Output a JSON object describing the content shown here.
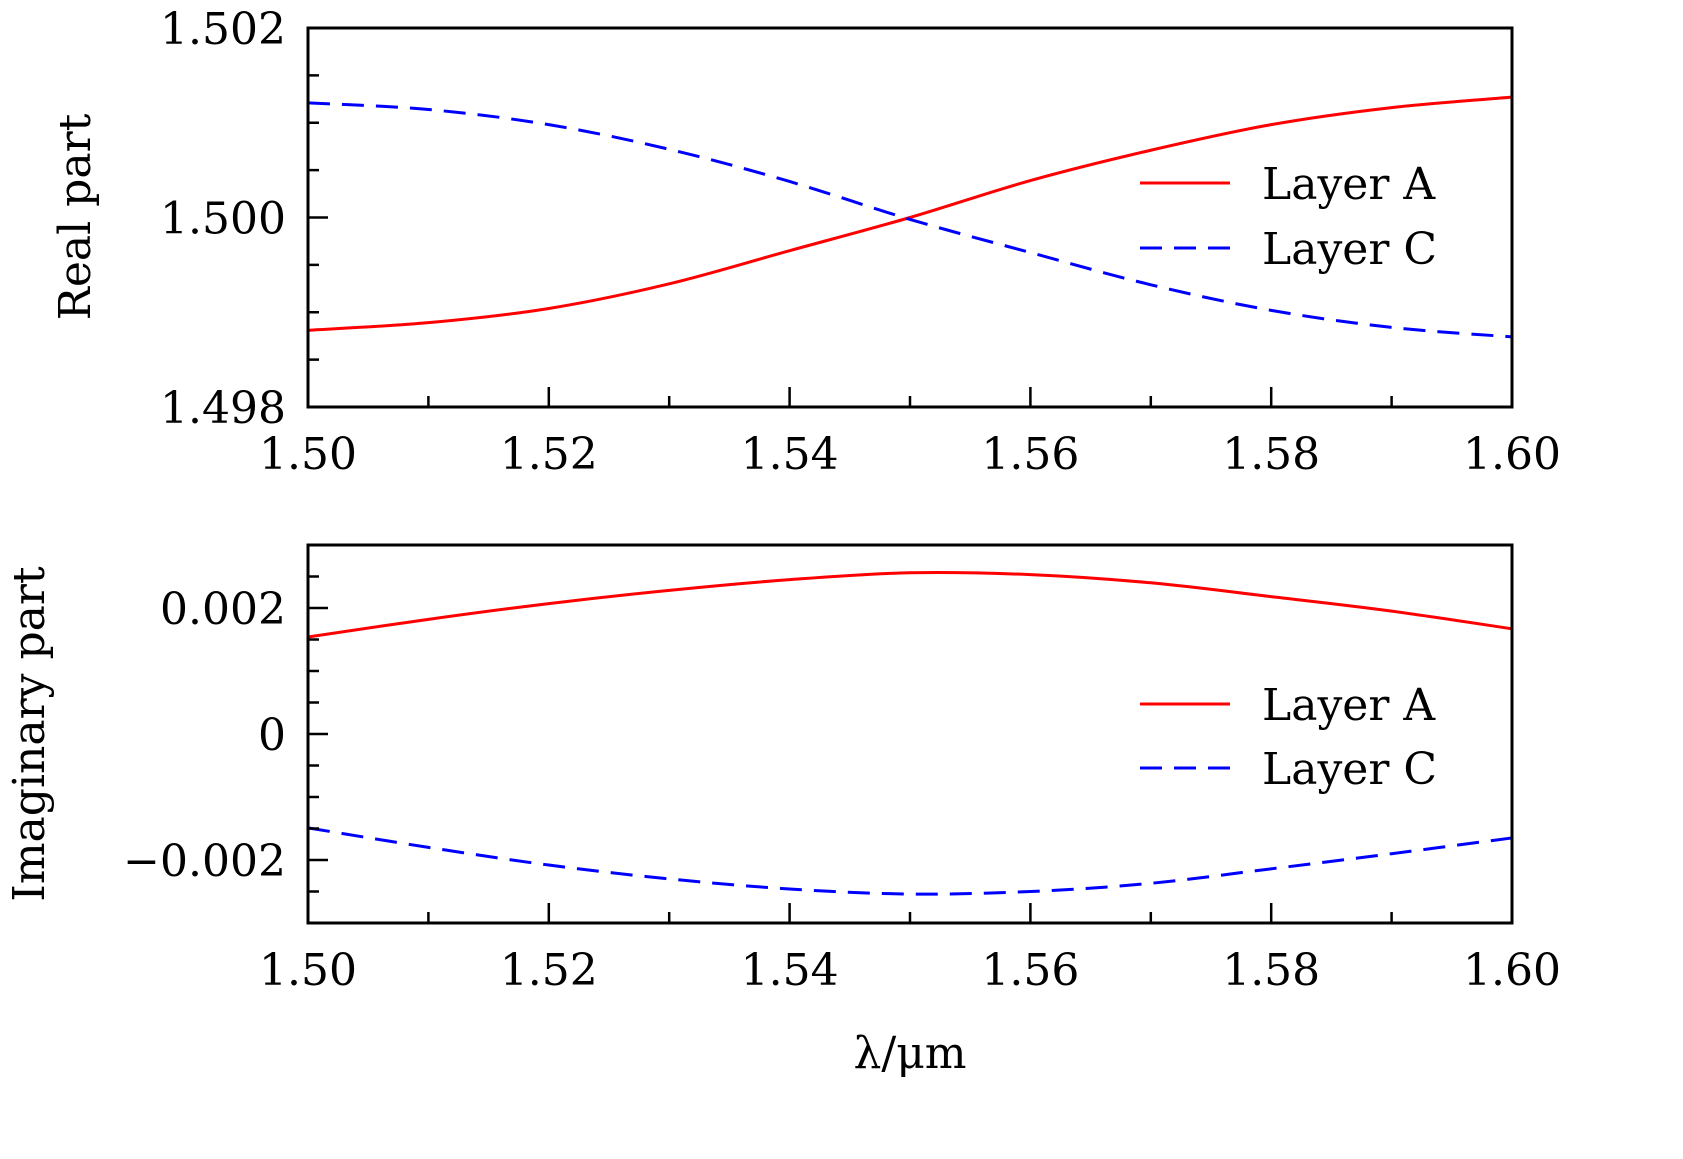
{
  "chart_data": [
    {
      "type": "line",
      "ylabel": "Real part",
      "xlabel": "",
      "xlim": [
        1.5,
        1.6
      ],
      "ylim": [
        1.498,
        1.502
      ],
      "xticks": [
        "1.50",
        "1.52",
        "1.54",
        "1.56",
        "1.58",
        "1.60"
      ],
      "yticks": [
        "1.498",
        "1.500",
        "1.502"
      ],
      "grid": false,
      "legend": "right",
      "x": [
        1.5,
        1.51,
        1.52,
        1.53,
        1.54,
        1.55,
        1.56,
        1.57,
        1.58,
        1.59,
        1.6
      ],
      "series": [
        {
          "name": "Layer A",
          "color": "#ff0000",
          "dash": "solid",
          "values": [
            1.49881,
            1.49889,
            1.49904,
            1.4993,
            1.49965,
            1.5,
            1.50039,
            1.50071,
            1.50098,
            1.50116,
            1.50127
          ]
        },
        {
          "name": "Layer C",
          "color": "#0000ff",
          "dash": "dashed",
          "values": [
            1.50121,
            1.50114,
            1.50098,
            1.50072,
            1.50038,
            1.49998,
            1.49963,
            1.49929,
            1.49902,
            1.49884,
            1.49874
          ]
        }
      ]
    },
    {
      "type": "line",
      "ylabel": "Imaginary part",
      "xlabel": "λ/μm",
      "xlim": [
        1.5,
        1.6
      ],
      "ylim": [
        -0.003,
        0.003
      ],
      "xticks": [
        "1.50",
        "1.52",
        "1.54",
        "1.56",
        "1.58",
        "1.60"
      ],
      "yticks": [
        "−0.002",
        "0",
        "0.002"
      ],
      "grid": false,
      "legend": "right",
      "x": [
        1.5,
        1.51,
        1.52,
        1.53,
        1.54,
        1.55,
        1.56,
        1.57,
        1.58,
        1.59,
        1.6
      ],
      "series": [
        {
          "name": "Layer A",
          "color": "#ff0000",
          "dash": "solid",
          "values": [
            0.00154,
            0.00182,
            0.00207,
            0.00228,
            0.00245,
            0.00256,
            0.00253,
            0.0024,
            0.00218,
            0.00195,
            0.00167
          ]
        },
        {
          "name": "Layer C",
          "color": "#0000ff",
          "dash": "dashed",
          "values": [
            -0.00149,
            -0.0018,
            -0.00208,
            -0.0023,
            -0.00246,
            -0.00254,
            -0.0025,
            -0.00237,
            -0.00214,
            -0.0019,
            -0.00165
          ]
        }
      ]
    }
  ]
}
